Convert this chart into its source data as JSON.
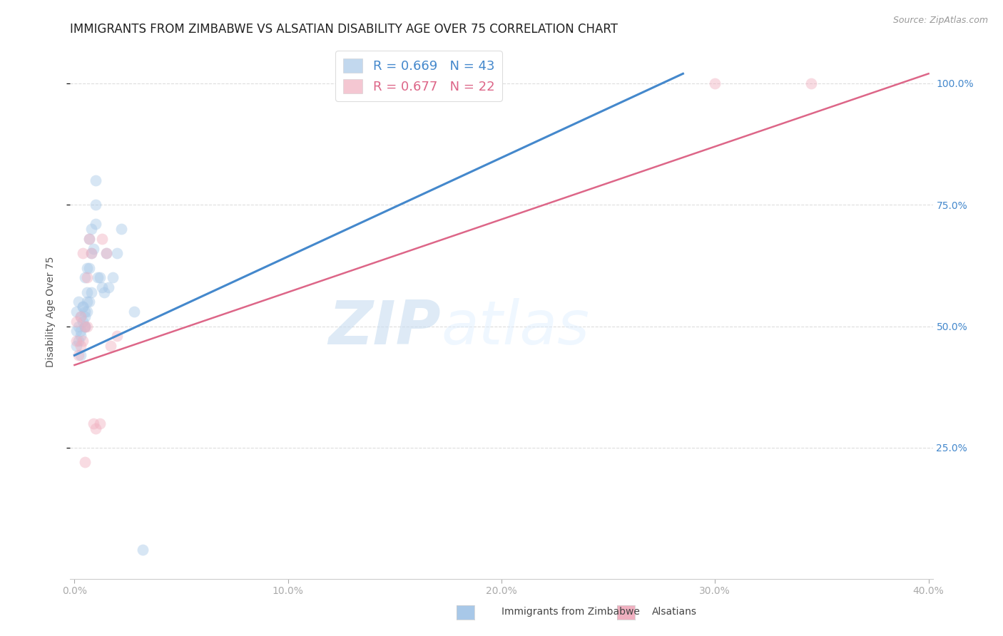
{
  "title": "IMMIGRANTS FROM ZIMBABWE VS ALSATIAN DISABILITY AGE OVER 75 CORRELATION CHART",
  "source": "Source: ZipAtlas.com",
  "ylabel": "Disability Age Over 75",
  "x_tick_labels": [
    "0.0%",
    "10.0%",
    "20.0%",
    "30.0%",
    "40.0%"
  ],
  "x_ticks": [
    0.0,
    0.1,
    0.2,
    0.3,
    0.4
  ],
  "y_tick_labels": [
    "25.0%",
    "50.0%",
    "75.0%",
    "100.0%"
  ],
  "y_ticks": [
    0.25,
    0.5,
    0.75,
    1.0
  ],
  "legend_entries": [
    {
      "label": "R = 0.669   N = 43",
      "color": "#a8c8e8"
    },
    {
      "label": "R = 0.677   N = 22",
      "color": "#f0b0c0"
    }
  ],
  "legend_labels_bottom": [
    "Immigrants from Zimbabwe",
    "Alsatians"
  ],
  "blue_color": "#a8c8e8",
  "pink_color": "#f0b0c0",
  "blue_line_color": "#4488cc",
  "pink_line_color": "#dd6688",
  "watermark_zip": "ZIP",
  "watermark_atlas": "atlas",
  "blue_x": [
    0.001,
    0.001,
    0.002,
    0.002,
    0.003,
    0.003,
    0.004,
    0.004,
    0.005,
    0.005,
    0.005,
    0.006,
    0.006,
    0.006,
    0.007,
    0.007,
    0.008,
    0.008,
    0.009,
    0.01,
    0.01,
    0.011,
    0.012,
    0.013,
    0.014,
    0.015,
    0.016,
    0.018,
    0.02,
    0.022,
    0.001,
    0.002,
    0.003,
    0.003,
    0.004,
    0.005,
    0.005,
    0.006,
    0.007,
    0.008,
    0.01,
    0.028,
    0.032
  ],
  "blue_y": [
    0.49,
    0.53,
    0.5,
    0.55,
    0.49,
    0.52,
    0.51,
    0.54,
    0.5,
    0.53,
    0.6,
    0.53,
    0.57,
    0.62,
    0.62,
    0.68,
    0.65,
    0.7,
    0.66,
    0.71,
    0.75,
    0.6,
    0.6,
    0.58,
    0.57,
    0.65,
    0.58,
    0.6,
    0.65,
    0.7,
    0.46,
    0.47,
    0.44,
    0.48,
    0.54,
    0.5,
    0.52,
    0.55,
    0.55,
    0.57,
    0.8,
    0.53,
    0.04
  ],
  "pink_x": [
    0.001,
    0.001,
    0.002,
    0.003,
    0.003,
    0.004,
    0.004,
    0.005,
    0.006,
    0.006,
    0.007,
    0.008,
    0.009,
    0.01,
    0.012,
    0.013,
    0.015,
    0.017,
    0.02,
    0.005,
    0.3,
    0.345
  ],
  "pink_y": [
    0.47,
    0.51,
    0.44,
    0.46,
    0.52,
    0.47,
    0.65,
    0.5,
    0.5,
    0.6,
    0.68,
    0.65,
    0.3,
    0.29,
    0.3,
    0.68,
    0.65,
    0.46,
    0.48,
    0.22,
    1.0,
    1.0
  ],
  "blue_line_x": [
    0.0,
    0.285
  ],
  "blue_line_y": [
    0.44,
    1.02
  ],
  "pink_line_x": [
    0.0,
    0.4
  ],
  "pink_line_y": [
    0.42,
    1.02
  ],
  "xlim": [
    -0.002,
    0.402
  ],
  "ylim": [
    -0.02,
    1.08
  ],
  "background_color": "#ffffff",
  "grid_color": "#dddddd",
  "title_fontsize": 12,
  "axis_label_fontsize": 10,
  "tick_fontsize": 10,
  "marker_size": 130,
  "marker_alpha": 0.45
}
